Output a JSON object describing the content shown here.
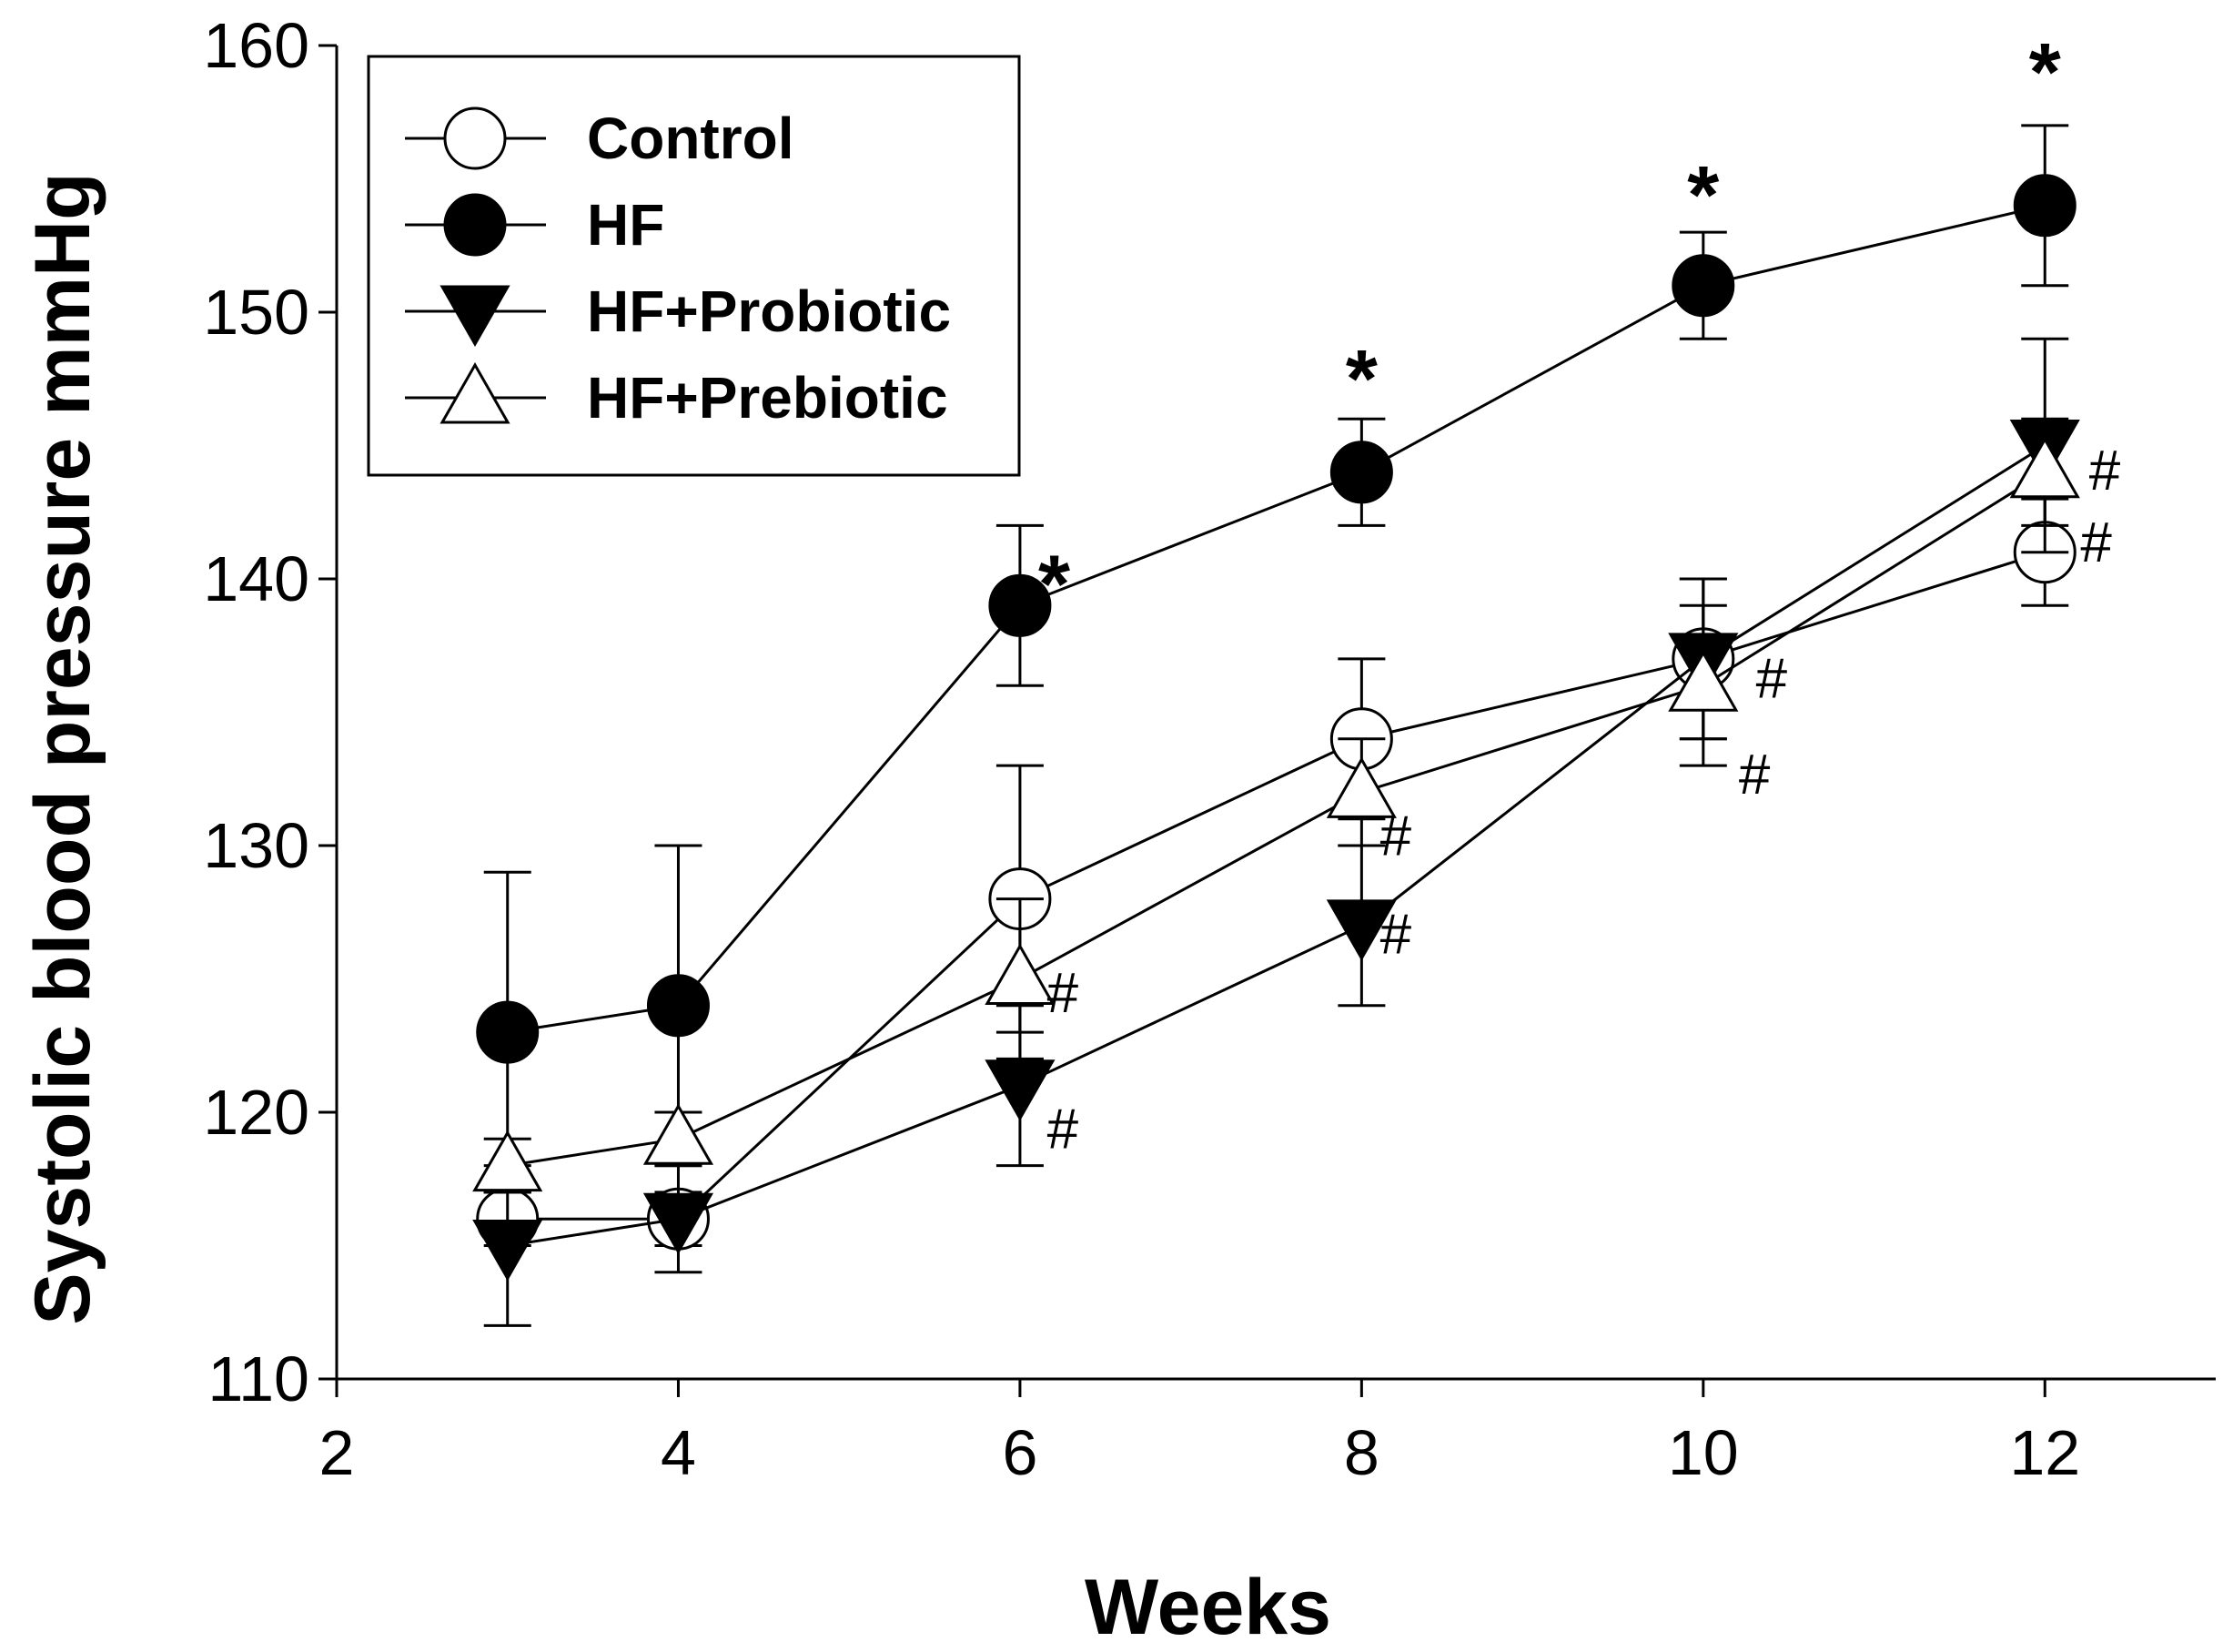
{
  "chart_data": {
    "type": "line",
    "title": "",
    "xlabel": "Weeks",
    "ylabel": "Systolic blood pressure mmHg",
    "xlim": [
      2,
      13
    ],
    "ylim": [
      110,
      160
    ],
    "xticks": [
      2,
      4,
      6,
      8,
      10,
      12
    ],
    "yticks": [
      110,
      120,
      130,
      140,
      150,
      160
    ],
    "grid": false,
    "legend_position": "top-left",
    "x": [
      3,
      4,
      6,
      8,
      10,
      12
    ],
    "series": [
      {
        "name": "Control",
        "marker": "circle-open",
        "values": [
          116,
          116,
          128,
          134,
          137,
          141
        ],
        "err": [
          1,
          1,
          5,
          3,
          3,
          2
        ]
      },
      {
        "name": "HF",
        "marker": "circle-filled",
        "values": [
          123,
          124,
          139,
          144,
          151,
          154
        ],
        "err": [
          6,
          6,
          3,
          2,
          2,
          3
        ]
      },
      {
        "name": "HF+Probiotic",
        "marker": "triangle-down-filled",
        "values": [
          115,
          116,
          121,
          127,
          137,
          145
        ],
        "err": [
          3,
          2,
          3,
          3,
          3,
          4
        ]
      },
      {
        "name": "HF+Prebiotic",
        "marker": "triangle-up-open",
        "values": [
          118,
          119,
          125,
          132,
          136,
          144
        ],
        "err": [
          1,
          1,
          3,
          2,
          3,
          2
        ]
      }
    ],
    "annotations": [
      {
        "text": "*",
        "x": 6.2,
        "y": 140.8,
        "style": "star"
      },
      {
        "text": "*",
        "x": 8.0,
        "y": 148.5,
        "style": "star"
      },
      {
        "text": "*",
        "x": 10.0,
        "y": 155.4,
        "style": "star"
      },
      {
        "text": "*",
        "x": 12.0,
        "y": 160.0,
        "style": "star"
      },
      {
        "text": "#",
        "x": 6.25,
        "y": 119.4,
        "style": "hash"
      },
      {
        "text": "#",
        "x": 6.25,
        "y": 124.5,
        "style": "hash"
      },
      {
        "text": "#",
        "x": 8.2,
        "y": 126.7,
        "style": "hash"
      },
      {
        "text": "#",
        "x": 8.2,
        "y": 130.4,
        "style": "hash"
      },
      {
        "text": "#",
        "x": 10.3,
        "y": 132.7,
        "style": "hash"
      },
      {
        "text": "#",
        "x": 10.4,
        "y": 136.3,
        "style": "hash"
      },
      {
        "text": "#",
        "x": 12.3,
        "y": 141.4,
        "style": "hash"
      },
      {
        "text": "#",
        "x": 12.35,
        "y": 144.1,
        "style": "hash"
      }
    ]
  }
}
